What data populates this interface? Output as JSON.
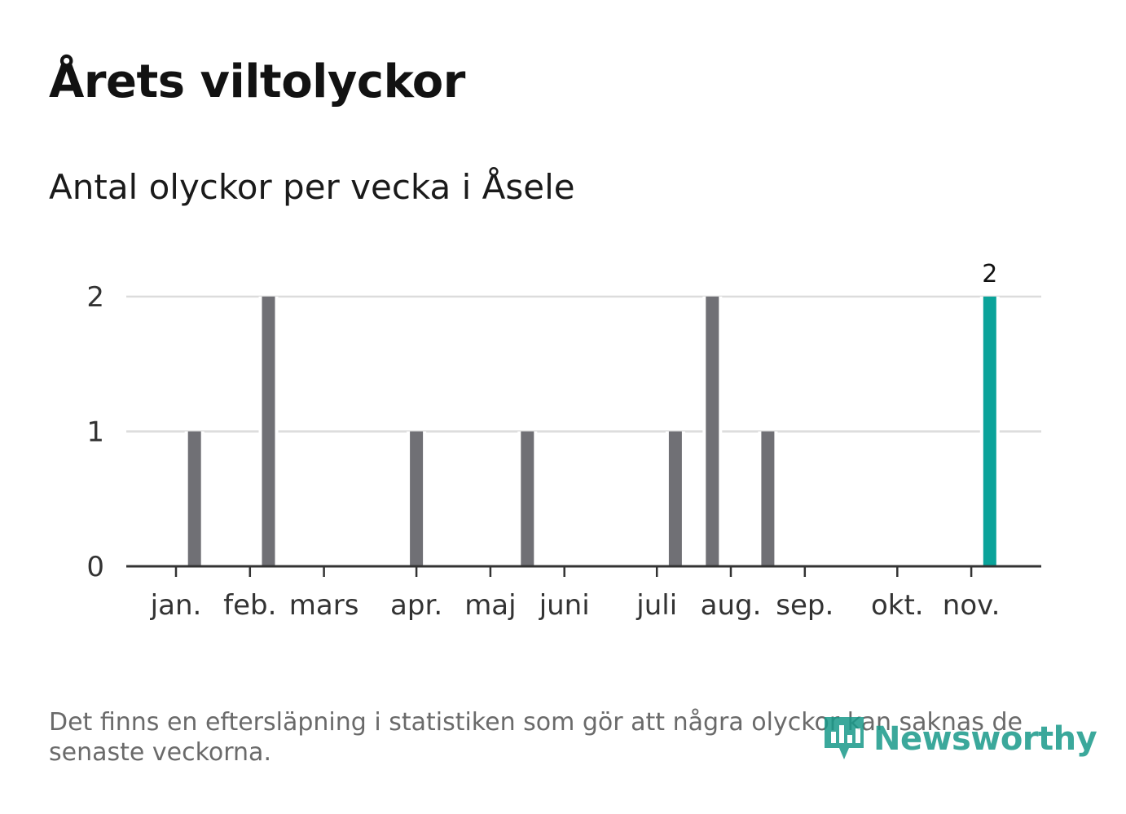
{
  "header": {
    "title": "Årets viltolyckor",
    "subtitle": "Antal olyckor per vecka i Åsele"
  },
  "footer": {
    "note": "Det finns en eftersläpning i statistiken som gör att några olyckor kan saknas de senaste veckorna.",
    "brand": "Newsworthy",
    "brand_icon": "newsworthy-logo-icon",
    "brand_color": "#1a9a8a"
  },
  "colors": {
    "bar": "#707075",
    "highlight": "#0aa39a",
    "grid": "#dcdcdc",
    "axis": "#333333"
  },
  "chart_data": {
    "type": "bar",
    "title": "Antal olyckor per vecka i Åsele",
    "xlabel": "",
    "ylabel": "",
    "ylim": [
      0,
      2
    ],
    "yticks": [
      0,
      1,
      2
    ],
    "x_unit": "week",
    "x_range": [
      1,
      53
    ],
    "month_ticks": [
      {
        "label": "jan.",
        "week": 1
      },
      {
        "label": "feb.",
        "week": 5
      },
      {
        "label": "mars",
        "week": 9
      },
      {
        "label": "apr.",
        "week": 14
      },
      {
        "label": "maj",
        "week": 18
      },
      {
        "label": "juni",
        "week": 22
      },
      {
        "label": "juli",
        "week": 27
      },
      {
        "label": "aug.",
        "week": 31
      },
      {
        "label": "sep.",
        "week": 35
      },
      {
        "label": "okt.",
        "week": 40
      },
      {
        "label": "nov.",
        "week": 44
      }
    ],
    "series": [
      {
        "name": "Antal olyckor",
        "points": [
          {
            "week": 2,
            "value": 1
          },
          {
            "week": 6,
            "value": 2
          },
          {
            "week": 14,
            "value": 1
          },
          {
            "week": 20,
            "value": 1
          },
          {
            "week": 28,
            "value": 1
          },
          {
            "week": 30,
            "value": 2
          },
          {
            "week": 33,
            "value": 1
          },
          {
            "week": 45,
            "value": 2,
            "highlight": true,
            "label": "2"
          }
        ]
      }
    ],
    "grid": true
  }
}
